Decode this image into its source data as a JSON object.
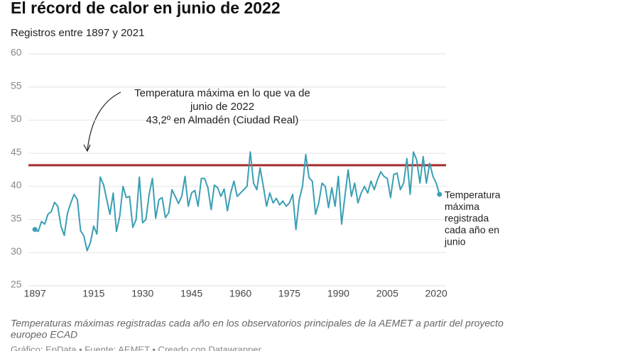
{
  "chart_data": {
    "type": "line",
    "title": "El récord de calor en junio de 2022",
    "subtitle": "Registros entre 1897 y 2021",
    "x": [
      1897,
      1898,
      1899,
      1900,
      1901,
      1902,
      1903,
      1904,
      1905,
      1906,
      1907,
      1908,
      1909,
      1910,
      1911,
      1912,
      1913,
      1914,
      1915,
      1916,
      1917,
      1918,
      1919,
      1920,
      1921,
      1922,
      1923,
      1924,
      1925,
      1926,
      1927,
      1928,
      1929,
      1930,
      1931,
      1932,
      1933,
      1934,
      1935,
      1936,
      1937,
      1938,
      1939,
      1940,
      1941,
      1942,
      1943,
      1944,
      1945,
      1946,
      1947,
      1948,
      1949,
      1950,
      1951,
      1952,
      1953,
      1954,
      1955,
      1956,
      1957,
      1958,
      1959,
      1960,
      1961,
      1962,
      1963,
      1964,
      1965,
      1966,
      1967,
      1968,
      1969,
      1970,
      1971,
      1972,
      1973,
      1974,
      1975,
      1976,
      1977,
      1978,
      1979,
      1980,
      1981,
      1982,
      1983,
      1984,
      1985,
      1986,
      1987,
      1988,
      1989,
      1990,
      1991,
      1992,
      1993,
      1994,
      1995,
      1996,
      1997,
      1998,
      1999,
      2000,
      2001,
      2002,
      2003,
      2004,
      2005,
      2006,
      2007,
      2008,
      2009,
      2010,
      2011,
      2012,
      2013,
      2014,
      2015,
      2016,
      2017,
      2018,
      2019,
      2020,
      2021
    ],
    "series": [
      {
        "name": "Temperatura máxima registrada cada año en junio",
        "color": "#3a9fb4",
        "values": [
          33.5,
          33.2,
          34.7,
          34.3,
          35.8,
          36.2,
          37.6,
          37.0,
          34.0,
          32.6,
          36.0,
          37.5,
          38.8,
          38.0,
          33.3,
          32.5,
          30.3,
          31.5,
          34.0,
          32.8,
          41.4,
          40.3,
          38.0,
          35.8,
          39.0,
          33.2,
          35.5,
          40.0,
          38.3,
          38.5,
          33.8,
          35.0,
          41.4,
          34.5,
          35.0,
          38.8,
          41.2,
          35.2,
          38.0,
          38.3,
          35.3,
          36.0,
          39.5,
          38.5,
          37.4,
          38.5,
          41.5,
          37.0,
          39.0,
          39.4,
          37.0,
          41.2,
          41.2,
          39.8,
          36.5,
          40.2,
          39.8,
          38.5,
          39.6,
          36.3,
          39.0,
          40.8,
          38.5,
          39.0,
          39.5,
          40.0,
          45.2,
          40.5,
          39.5,
          42.8,
          40.0,
          37.0,
          39.0,
          37.5,
          38.2,
          37.2,
          37.8,
          37.0,
          37.5,
          38.8,
          33.5,
          38.0,
          40.0,
          44.8,
          41.3,
          40.8,
          35.8,
          37.5,
          40.5,
          40.0,
          36.8,
          39.8,
          37.0,
          41.5,
          34.3,
          38.5,
          42.5,
          38.5,
          40.5,
          37.5,
          39.0,
          40.0,
          39.0,
          40.8,
          39.5,
          41.0,
          42.2,
          41.5,
          41.2,
          38.3,
          41.8,
          42.0,
          39.5,
          40.5,
          44.2,
          38.8,
          45.2,
          44.0,
          40.5,
          44.5,
          40.5,
          43.5,
          41.5,
          40.5,
          38.8
        ]
      }
    ],
    "series_label_lines": [
      "Temperatura",
      "máxima",
      "registrada",
      "cada año en",
      "junio"
    ],
    "reference_line": {
      "value": 43.2,
      "color": "#a52a2a"
    },
    "annotation_lines": [
      "Temperatura máxima en lo que va de",
      "junio de 2022",
      "43,2º en Almadén (Ciudad Real)"
    ],
    "xlim": [
      1895,
      2023
    ],
    "xticks": [
      1897,
      1915,
      1930,
      1945,
      1960,
      1975,
      1990,
      2005,
      2020
    ],
    "ylim": [
      25,
      60
    ],
    "yticks": [
      25,
      30,
      35,
      40,
      45,
      50,
      55,
      60
    ],
    "grid": true,
    "notes": [
      "Temperaturas máximas registradas cada año en los observatorios principales de la AEMET a partir del proyecto",
      "europeo ECAD"
    ],
    "credits": "Gráfico: EpData • Fuente: AEMET • Creado con Datawrapper"
  }
}
